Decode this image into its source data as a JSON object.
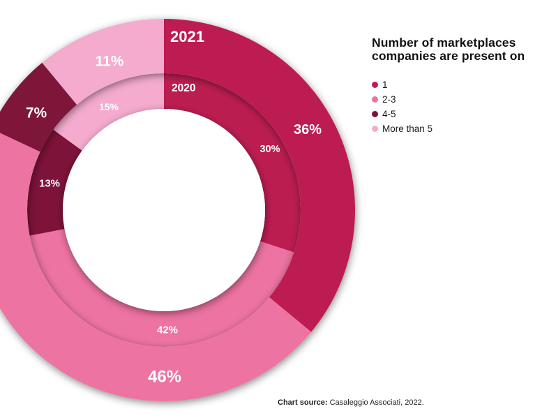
{
  "title": {
    "line1": "Number of marketplaces",
    "line2": "companies are present on"
  },
  "legend": {
    "items": [
      {
        "label": "1",
        "color": "#bc1d51"
      },
      {
        "label": "2-3",
        "color": "#ed73a2"
      },
      {
        "label": "4-5",
        "color": "#7d1338"
      },
      {
        "label": "More than 5",
        "color": "#f4abcd"
      }
    ]
  },
  "source": {
    "prefix": "Chart source:",
    "text": " Casaleggio Associati, 2022."
  },
  "chart_data": {
    "type": "pie",
    "subtype": "nested_donut",
    "title": "Number of marketplaces companies are present on",
    "unit": "%",
    "direction": "clockwise",
    "start_angle_deg": 0,
    "legend_position": "top-right",
    "categories": [
      "1",
      "2-3",
      "4-5",
      "More than 5"
    ],
    "colors": [
      "#bc1d51",
      "#ed73a2",
      "#7d1338",
      "#f4abcd"
    ],
    "rings": [
      {
        "name": "2021",
        "position": "outer",
        "values": [
          36,
          46,
          7,
          11
        ],
        "labels": [
          "36%",
          "46%",
          "7%",
          "11%"
        ]
      },
      {
        "name": "2020",
        "position": "inner",
        "values": [
          30,
          42,
          13,
          15
        ],
        "labels": [
          "30%",
          "42%",
          "13%",
          "15%"
        ]
      }
    ],
    "label_color": "#ffffff",
    "annotation": "Chart source: Casaleggio Associati, 2022."
  }
}
